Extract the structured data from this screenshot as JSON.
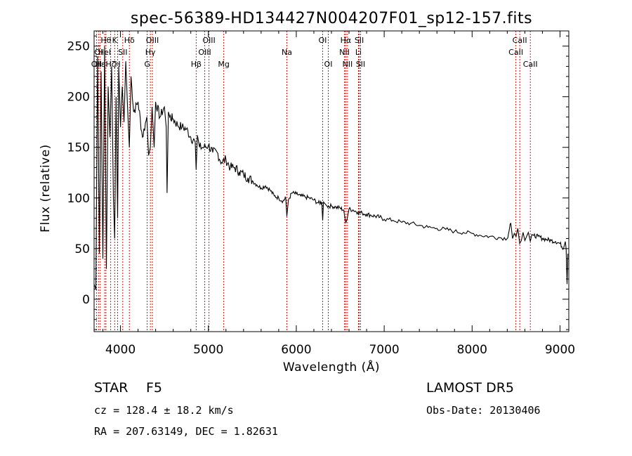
{
  "chart_data": {
    "type": "line",
    "title": "spec-56389-HD134427N004207F01_sp12-157.fits",
    "xlabel": "Wavelength (Å)",
    "ylabel": "Flux (relative)",
    "xlim": [
      3700,
      9100
    ],
    "ylim": [
      -32,
      265
    ],
    "x_ticks": [
      4000,
      5000,
      6000,
      7000,
      8000,
      9000
    ],
    "y_ticks": [
      0,
      50,
      100,
      150,
      200,
      250
    ],
    "grid": false,
    "line_color": "#000000",
    "marker_color": "#c00000",
    "series": [
      {
        "x": [
          3700,
          3720,
          3740,
          3760,
          3780,
          3800,
          3820,
          3840,
          3860,
          3880,
          3900,
          3920,
          3934,
          3950,
          3968,
          3980,
          4000,
          4020,
          4040,
          4060,
          4080,
          4101,
          4120,
          4150,
          4200,
          4250,
          4300,
          4320,
          4340,
          4360,
          4383,
          4400,
          4450,
          4500,
          4520,
          4530,
          4545,
          4560,
          4600,
          4650,
          4700,
          4750,
          4800,
          4850,
          4861,
          4875,
          4900,
          4950,
          5000,
          5050,
          5100,
          5150,
          5200,
          5250,
          5300,
          5350,
          5400,
          5450,
          5500,
          5550,
          5600,
          5650,
          5700,
          5750,
          5800,
          5850,
          5880,
          5893,
          5910,
          5950,
          6000,
          6050,
          6100,
          6150,
          6200,
          6250,
          6290,
          6300,
          6310,
          6330,
          6350,
          6400,
          6450,
          6500,
          6540,
          6563,
          6580,
          6600,
          6650,
          6700,
          6750,
          6800,
          6850,
          6900,
          6950,
          7000,
          7100,
          7200,
          7300,
          7400,
          7500,
          7600,
          7700,
          7800,
          7900,
          8000,
          8100,
          8200,
          8300,
          8400,
          8440,
          8460,
          8480,
          8500,
          8520,
          8542,
          8560,
          8580,
          8600,
          8620,
          8640,
          8662,
          8680,
          8700,
          8750,
          8800,
          8850,
          8900,
          8950,
          9000,
          9040,
          9060,
          9070,
          9080,
          9090
        ],
        "y": [
          15,
          10,
          240,
          45,
          225,
          40,
          250,
          30,
          210,
          160,
          230,
          100,
          60,
          200,
          80,
          230,
          170,
          210,
          175,
          235,
          190,
          150,
          220,
          185,
          195,
          160,
          180,
          142,
          150,
          190,
          150,
          195,
          180,
          190,
          170,
          105,
          185,
          180,
          178,
          172,
          170,
          168,
          160,
          155,
          128,
          162,
          150,
          150,
          152,
          145,
          145,
          135,
          138,
          130,
          130,
          126,
          123,
          120,
          117,
          113,
          110,
          112,
          108,
          102,
          100,
          97,
          100,
          82,
          98,
          105,
          104,
          102,
          101,
          100,
          98,
          95,
          96,
          78,
          96,
          94,
          92,
          92,
          91,
          90,
          88,
          75,
          80,
          89,
          88,
          86,
          85,
          84,
          83,
          82,
          81,
          79,
          78,
          76,
          75,
          73,
          71,
          70,
          69,
          67,
          66,
          65,
          63,
          62,
          61,
          60,
          75,
          60,
          65,
          62,
          70,
          55,
          58,
          66,
          58,
          62,
          66,
          57,
          64,
          63,
          62,
          60,
          59,
          58,
          57,
          55,
          50,
          57,
          50,
          15,
          45
        ]
      }
    ],
    "line_markers": [
      {
        "w": 3727,
        "label": "OII",
        "row": 2
      },
      {
        "w": 3750,
        "label": "OI",
        "row": 1
      },
      {
        "w": 3770,
        "label": "Hε",
        "row": 2
      },
      {
        "w": 3820,
        "label": "HeI",
        "row": 1
      },
      {
        "w": 3835,
        "label": "Hθ",
        "row": 0
      },
      {
        "w": 3889,
        "label": "Hζ",
        "row": 2
      },
      {
        "w": 3934,
        "label": "K",
        "row": 0
      },
      {
        "w": 3968,
        "label": "H",
        "row": 2
      },
      {
        "w": 4026,
        "label": "SII",
        "row": 1
      },
      {
        "w": 4101,
        "label": "Hδ",
        "row": 0
      },
      {
        "w": 4304,
        "label": "G",
        "row": 2
      },
      {
        "w": 4340,
        "label": "Hγ",
        "row": 1
      },
      {
        "w": 4363,
        "label": "OIII",
        "row": 0
      },
      {
        "w": 4861,
        "label": "Hβ",
        "row": 2
      },
      {
        "w": 4959,
        "label": "OIII",
        "row": 1
      },
      {
        "w": 5007,
        "label": "OIII",
        "row": 0
      },
      {
        "w": 5175,
        "label": "Mg",
        "row": 2
      },
      {
        "w": 5893,
        "label": "Na",
        "row": 1
      },
      {
        "w": 6300,
        "label": "OI",
        "row": 0
      },
      {
        "w": 6364,
        "label": "OI",
        "row": 2
      },
      {
        "w": 6548,
        "label": "NII",
        "row": 1
      },
      {
        "w": 6563,
        "label": "Hα",
        "row": 0
      },
      {
        "w": 6583,
        "label": "NII",
        "row": 2
      },
      {
        "w": 6707,
        "label": "Li",
        "row": 1
      },
      {
        "w": 6716,
        "label": "SII",
        "row": 0
      },
      {
        "w": 6731,
        "label": "SII",
        "row": 2
      },
      {
        "w": 8498,
        "label": "CaII",
        "row": 1
      },
      {
        "w": 8542,
        "label": "CaII",
        "row": 0
      },
      {
        "w": 8662,
        "label": "CaII",
        "row": 2
      }
    ]
  },
  "info": {
    "object_class": "STAR",
    "subclass": "F5",
    "survey": "LAMOST DR5",
    "cz": "cz = 128.4 ± 18.2 km/s",
    "obs_date": "Obs-Date: 20130406",
    "coords": "RA = 207.63149, DEC =   1.82631"
  }
}
